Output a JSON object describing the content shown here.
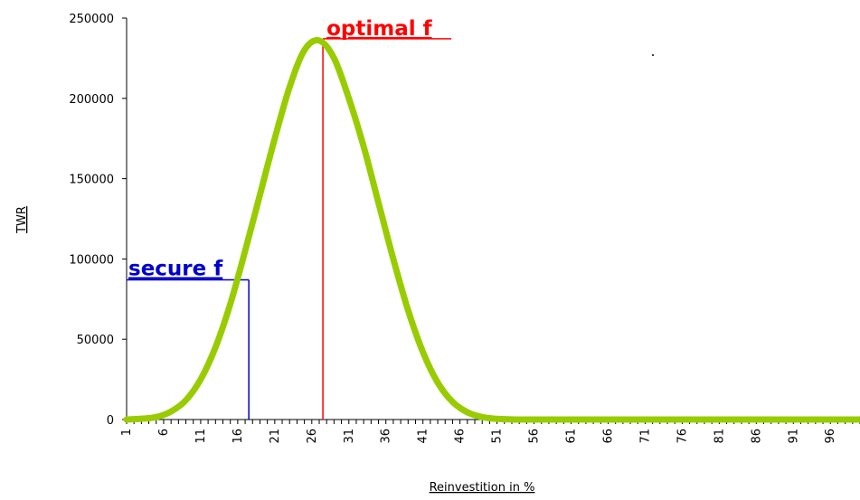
{
  "chart_data": {
    "type": "line",
    "xlabel": "Reinvestition in %",
    "ylabel": "TWR",
    "ylim": [
      0,
      250000
    ],
    "yticks": [
      "0",
      "50000",
      "100000",
      "150000",
      "200000",
      "250000"
    ],
    "xticks": [
      "1",
      "6",
      "11",
      "16",
      "21",
      "26",
      "31",
      "36",
      "41",
      "46",
      "51",
      "56",
      "61",
      "66",
      "71",
      "76",
      "81",
      "86",
      "91",
      "96"
    ],
    "xlim": [
      1,
      100
    ],
    "grid": false,
    "legend": "none",
    "line_color": "#99cc00",
    "series": [
      {
        "x": [
          1,
          3,
          5,
          7,
          9,
          11,
          13,
          15,
          17,
          19,
          21,
          23,
          25,
          27,
          29,
          31,
          33,
          35,
          37,
          39,
          41,
          43,
          45,
          47,
          49,
          51,
          53,
          55,
          60,
          70,
          80,
          90,
          100
        ],
        "values": [
          0,
          500,
          1500,
          5000,
          12000,
          25000,
          45000,
          72000,
          105000,
          140000,
          175000,
          207000,
          230000,
          236000,
          225000,
          200000,
          170000,
          135000,
          100000,
          68000,
          42000,
          23000,
          11000,
          4500,
          1500,
          400,
          100,
          0,
          0,
          0,
          0,
          0,
          0
        ]
      }
    ],
    "annotations": [
      {
        "text": "optimal f",
        "x": 27.5,
        "y": 236000,
        "color": "#ff0000"
      },
      {
        "text": "secure f",
        "x": 17.5,
        "y": 87000,
        "color": "#0000cc"
      }
    ]
  }
}
